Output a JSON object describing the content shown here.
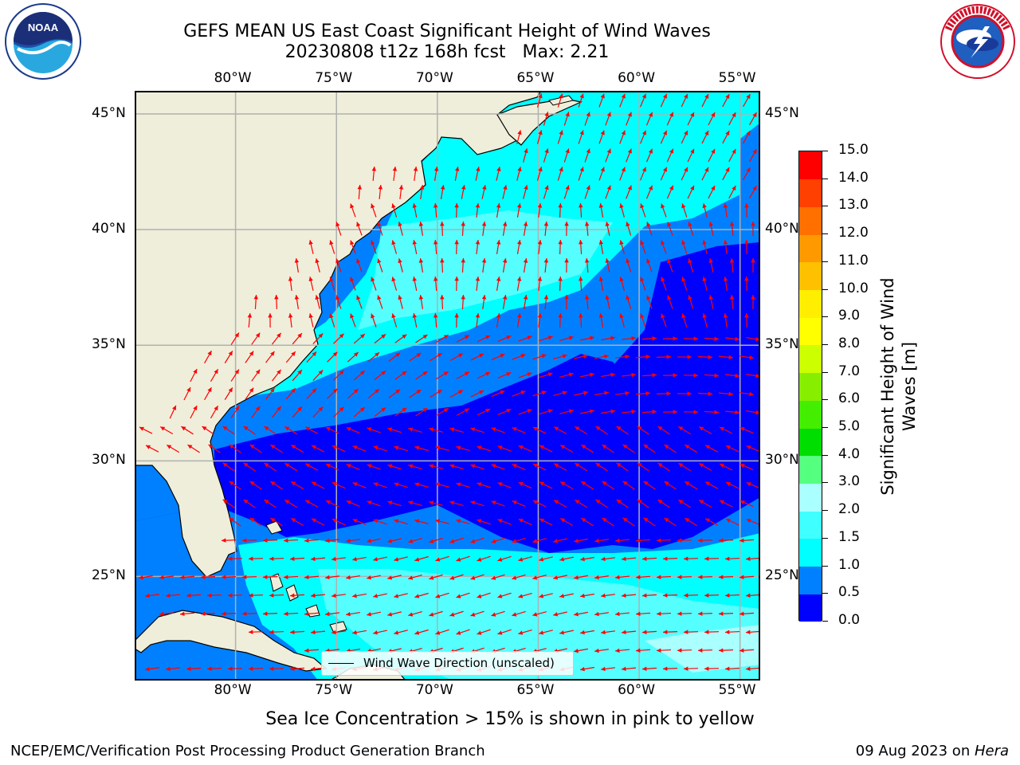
{
  "header": {
    "title_line1": "GEFS MEAN US East Coast Significant Height of Wind Waves",
    "title_line2": "20230808 t12z 168h fcst   Max: 2.21"
  },
  "logos": {
    "left": "noaa-logo",
    "left_text": "NOAA",
    "left_ring_text": "NATIONAL OCEANIC AND ATMOSPHERIC ADMINISTRATION · U.S. DEPARTMENT OF COMMERCE",
    "right": "nws-logo",
    "right_ring_text": "NATIONAL WEATHER SERVICE"
  },
  "map": {
    "lon_labels": [
      "80°W",
      "75°W",
      "70°W",
      "65°W",
      "60°W",
      "55°W"
    ],
    "lat_labels": [
      "45°N",
      "40°N",
      "35°N",
      "30°N",
      "25°N"
    ],
    "lon_values": [
      -80,
      -75,
      -70,
      -65,
      -60,
      -55
    ],
    "lat_values": [
      45,
      40,
      35,
      30,
      25
    ],
    "legend_label": "Wind Wave Direction (unscaled)",
    "vector_color": "#ff0000",
    "land_color": "#efeedb"
  },
  "colorbar": {
    "title": "Significant Height of Wind Waves [m]",
    "title_line1": "Significant Height of Wind",
    "title_line2": "Waves [m]",
    "tick_labels": [
      "0.0",
      "0.5",
      "1.0",
      "1.5",
      "2.0",
      "3.0",
      "4.0",
      "5.0",
      "6.0",
      "7.0",
      "8.0",
      "9.0",
      "10.0",
      "11.0",
      "12.0",
      "13.0",
      "14.0",
      "15.0"
    ],
    "colors": [
      "#0000ff",
      "#0080ff",
      "#00ffff",
      "#40ffff",
      "#aaffff",
      "#55ff80",
      "#00dd00",
      "#44ee00",
      "#88ee00",
      "#ccff00",
      "#ffff00",
      "#ffee00",
      "#ffc000",
      "#ff9900",
      "#ff7000",
      "#ff4000",
      "#ff0000"
    ]
  },
  "note": "Sea Ice Concentration > 15% is shown in pink to yellow",
  "footer": {
    "left": "NCEP/EMC/Verification Post Processing Product Generation Branch",
    "right_date": "09 Aug 2023 on ",
    "right_host": "Hera"
  }
}
